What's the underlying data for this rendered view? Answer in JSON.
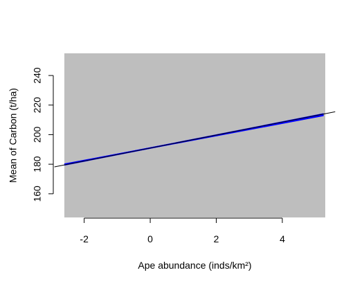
{
  "chart_data": {
    "type": "line",
    "title": "",
    "xlabel": "Ape abundance (inds/km²)",
    "ylabel": "Mean of Carbon (t/ha)",
    "xlim": [
      -2.6,
      5.3
    ],
    "ylim": [
      144,
      255
    ],
    "x_ticks": [
      -2,
      0,
      2,
      4
    ],
    "y_ticks": [
      160,
      180,
      200,
      220,
      240
    ],
    "x_tick_labels": [
      "-2",
      "0",
      "2",
      "4"
    ],
    "y_tick_labels": [
      "160",
      "180",
      "200",
      "220",
      "240"
    ],
    "grid": false,
    "legend": "none",
    "panel_color": "#bebebe",
    "series": [
      {
        "color": "#0000ff",
        "x": [
          -2.6,
          5.25
        ],
        "y": [
          179.5,
          214.0
        ]
      },
      {
        "color": "#0000ff",
        "x": [
          -2.6,
          5.25
        ],
        "y": [
          180.0,
          213.0
        ]
      },
      {
        "color": "#0000ff",
        "x": [
          -2.6,
          5.25
        ],
        "y": [
          179.8,
          213.6
        ]
      },
      {
        "color": "#000000",
        "x": [
          -2.9,
          5.6
        ],
        "y": [
          178.2,
          215.5
        ]
      }
    ]
  }
}
